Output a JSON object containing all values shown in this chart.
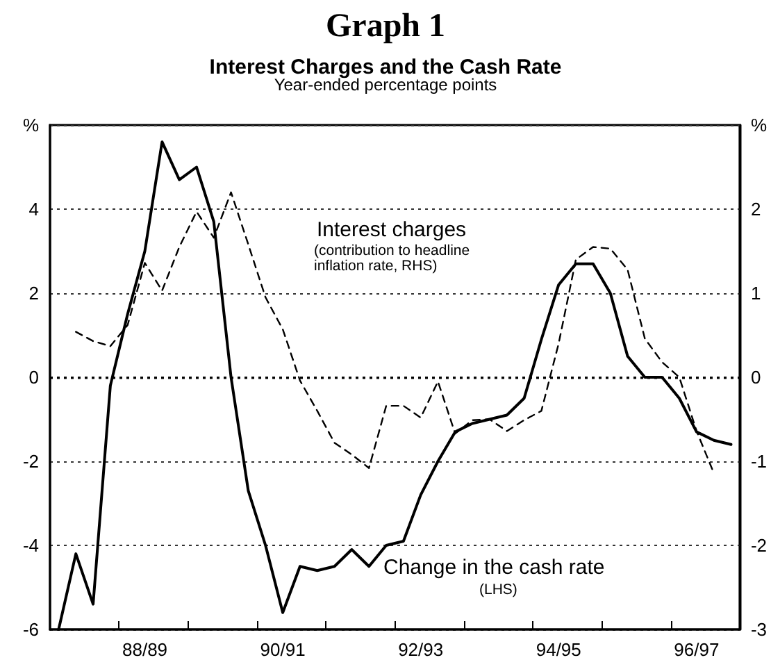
{
  "chart_data": {
    "type": "line",
    "title": "Graph 1",
    "subtitle": "Interest Charges and the Cash Rate",
    "annotations": [
      "Year-ended percentage points",
      "Interest charges",
      "(contribution to headline inflation rate, RHS)",
      "Change in the cash rate",
      "(LHS)"
    ],
    "categories": [
      null,
      null,
      null,
      null,
      null,
      "88/89",
      null,
      null,
      null,
      null,
      null,
      null,
      null,
      "90/91",
      null,
      null,
      null,
      null,
      null,
      null,
      null,
      "92/93",
      null,
      null,
      null,
      null,
      null,
      null,
      null,
      "94/95",
      null,
      null,
      null,
      null,
      null,
      null,
      null,
      "96/97",
      null,
      null
    ],
    "series": [
      {
        "color": "#000000",
        "line_style": "solid",
        "values": [
          -6.0,
          -4.2,
          -5.4,
          -0.2,
          1.5,
          3.0,
          5.6,
          4.7,
          5.0,
          3.7,
          0.0,
          -2.7,
          -4.0,
          -5.6,
          -4.5,
          -4.6,
          -4.5,
          -4.1,
          -4.5,
          -4.0,
          -3.9,
          -2.8,
          -2.0,
          -1.3,
          -1.1,
          -1.0,
          -0.9,
          -0.5,
          0.9,
          2.2,
          2.7,
          2.7,
          2.0,
          0.5,
          0.0,
          0.0,
          -0.5,
          -1.3,
          -1.5,
          -1.6
        ]
      },
      {
        "color": "#000000",
        "line_style": "dashed",
        "axis": "y2",
        "values": [
          null,
          0.54,
          0.43,
          0.37,
          0.62,
          1.36,
          1.03,
          1.55,
          1.97,
          1.66,
          2.2,
          1.58,
          0.95,
          0.57,
          -0.04,
          -0.4,
          -0.78,
          -0.92,
          -1.08,
          -0.34,
          -0.34,
          -0.48,
          -0.05,
          -0.67,
          -0.51,
          -0.5,
          -0.64,
          -0.51,
          -0.4,
          0.4,
          1.4,
          1.55,
          1.53,
          1.28,
          0.46,
          0.18,
          0.0,
          -0.64,
          -1.14,
          null
        ]
      }
    ],
    "ylim": [
      -6,
      6
    ],
    "yticks": [
      -6,
      -4,
      -2,
      0,
      2,
      4,
      {
        "value": 6,
        "label": "%"
      }
    ],
    "y2lim": [
      -3,
      3
    ],
    "y2ticks": [
      -3,
      -2,
      -1,
      0,
      1,
      2,
      {
        "value": 3,
        "label": "%"
      }
    ],
    "ref_lines": [
      {
        "axis": "y",
        "value": 0,
        "color": "#000000",
        "line_style": "dotted"
      }
    ],
    "grid": "y",
    "marker": "none"
  }
}
